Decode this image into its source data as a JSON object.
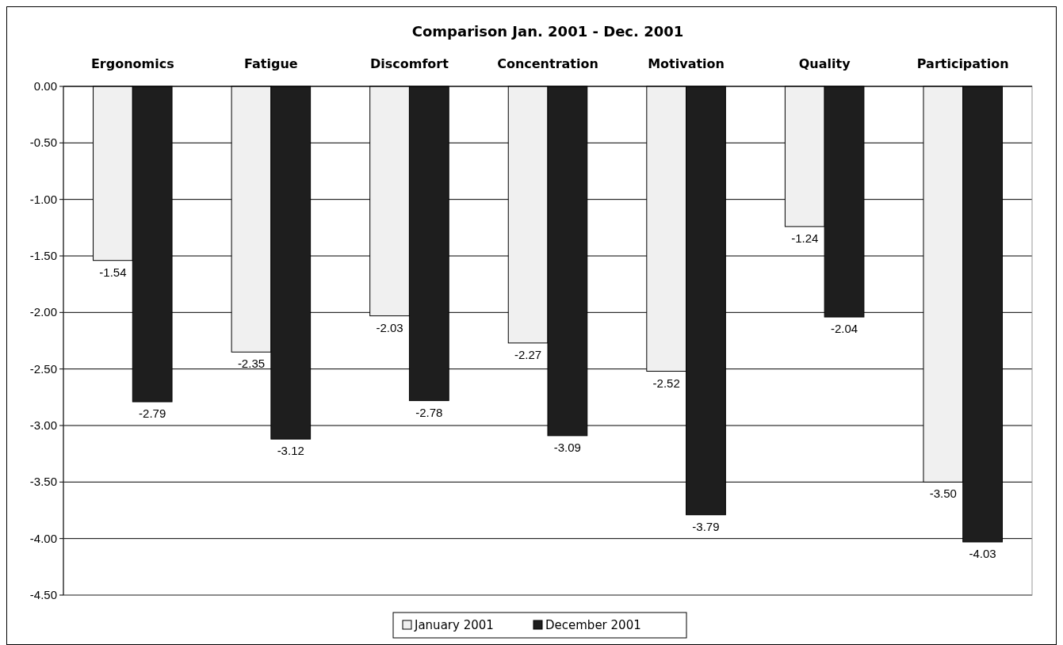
{
  "chart_data": {
    "type": "bar",
    "title": "Comparison Jan. 2001 - Dec. 2001",
    "categories": [
      "Ergonomics",
      "Fatigue",
      "Discomfort",
      "Concentration",
      "Motivation",
      "Quality",
      "Participation"
    ],
    "series": [
      {
        "name": "January 2001",
        "color": "#f0f0f0",
        "values": [
          -1.54,
          -2.35,
          -2.03,
          -2.27,
          -2.52,
          -1.24,
          -3.5
        ],
        "value_labels": [
          "-1.54",
          "-2.35",
          "-2.03",
          "-2.27",
          "-2.52",
          "-1.24",
          "-3.50"
        ]
      },
      {
        "name": "December 2001",
        "color": "#1e1e1e",
        "values": [
          -2.79,
          -3.12,
          -2.78,
          -3.09,
          -3.79,
          -2.04,
          -4.03
        ],
        "value_labels": [
          "-2.79",
          "-3.12",
          "-2.78",
          "-3.09",
          "-3.79",
          "-2.04",
          "-4.03"
        ]
      }
    ],
    "ylim": [
      -4.5,
      0
    ],
    "yticks": [
      {
        "value": 0,
        "label": "0.00"
      },
      {
        "value": -0.5,
        "label": "-0.50"
      },
      {
        "value": -1,
        "label": "-1.00"
      },
      {
        "value": -1.5,
        "label": "-1.50"
      },
      {
        "value": -2,
        "label": "-2.00"
      },
      {
        "value": -2.5,
        "label": "-2.50"
      },
      {
        "value": -3,
        "label": "-3.00"
      },
      {
        "value": -3.5,
        "label": "-3.50"
      },
      {
        "value": -4,
        "label": "-4.00"
      },
      {
        "value": -4.5,
        "label": "-4.50"
      }
    ],
    "grid": "y",
    "legend": "bottom"
  }
}
